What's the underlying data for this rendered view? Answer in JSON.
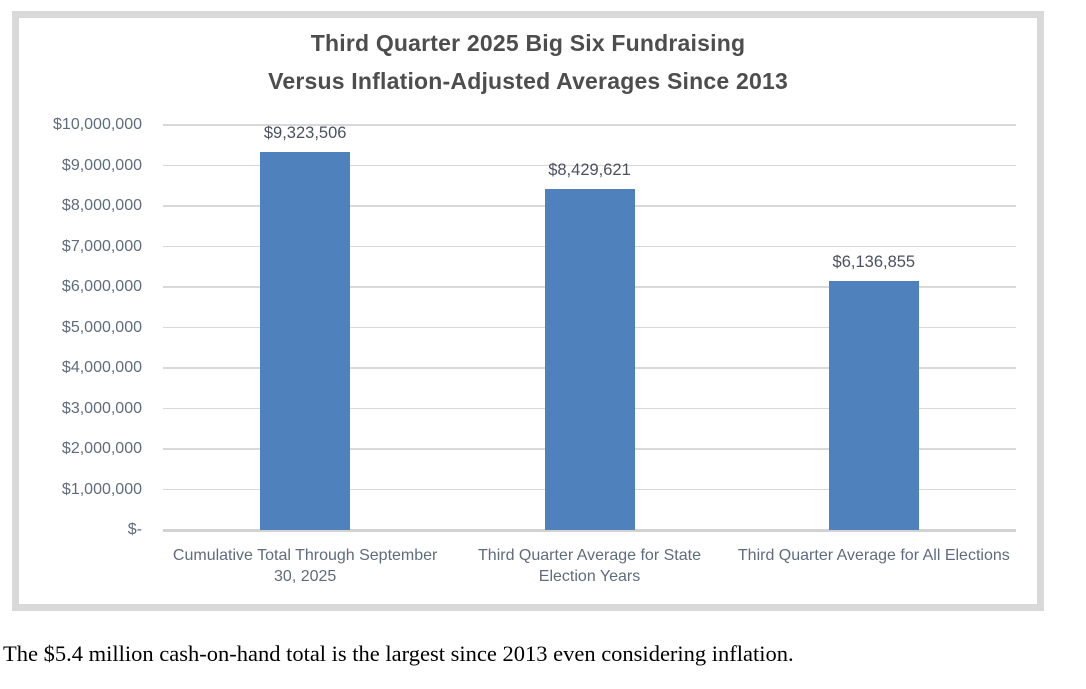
{
  "chart_data": {
    "type": "bar",
    "title_line1": "Third Quarter 2025 Big Six Fundraising",
    "title_line2": "Versus Inflation-Adjusted Averages Since 2013",
    "categories": [
      "Cumulative Total Through September 30, 2025",
      "Third Quarter Average for State Election Years",
      "Third Quarter Average for All Elections"
    ],
    "values": [
      9323506,
      8429621,
      6136855
    ],
    "data_labels": [
      "$9,323,506",
      "$8,429,621",
      "$6,136,855"
    ],
    "ylim": [
      0,
      10000000
    ],
    "ytick_interval": 1000000,
    "ytick_labels": [
      "$-",
      "$1,000,000",
      "$2,000,000",
      "$3,000,000",
      "$4,000,000",
      "$5,000,000",
      "$6,000,000",
      "$7,000,000",
      "$8,000,000",
      "$9,000,000",
      "$10,000,000"
    ],
    "grid": true,
    "legend": "none",
    "bar_color": "#4f81bd",
    "gridline_color": "#d9d9d9"
  },
  "caption": "The $5.4 million cash-on-hand total is the largest since 2013 even considering inflation."
}
